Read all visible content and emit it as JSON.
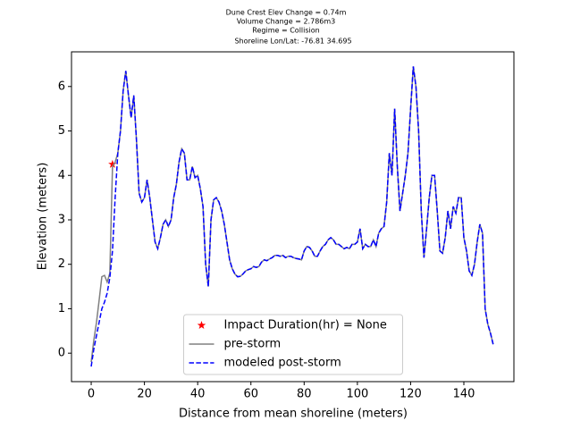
{
  "chart_data": {
    "type": "line",
    "title": [
      "Dune Crest Elev Change = 0.74m",
      "Volume Change = 2.786m3",
      "Regime = Collision",
      "Shoreline Lon/Lat: -76.81 34.695"
    ],
    "xlabel": "Distance from mean shoreline (meters)",
    "ylabel": "Elevation (meters)",
    "xlim": [
      -7.4,
      158.8
    ],
    "ylim": [
      -0.64,
      6.78
    ],
    "xticks": [
      0,
      20,
      40,
      60,
      80,
      100,
      120,
      140
    ],
    "yticks": [
      0,
      1,
      2,
      3,
      4,
      5,
      6
    ],
    "legend": "lower center",
    "x": [
      0,
      1,
      2,
      3,
      4,
      5,
      6,
      7,
      8,
      9,
      10,
      11,
      12,
      13,
      14,
      15,
      16,
      17,
      18,
      19,
      20,
      21,
      22,
      23,
      24,
      25,
      26,
      27,
      28,
      29,
      30,
      31,
      32,
      33,
      34,
      35,
      36,
      37,
      38,
      39,
      40,
      41,
      42,
      43,
      44,
      45,
      46,
      47,
      48,
      49,
      50,
      51,
      52,
      53,
      54,
      55,
      56,
      57,
      58,
      59,
      60,
      61,
      62,
      63,
      64,
      65,
      66,
      67,
      68,
      69,
      70,
      71,
      72,
      73,
      74,
      75,
      76,
      77,
      78,
      79,
      80,
      81,
      82,
      83,
      84,
      85,
      86,
      87,
      88,
      89,
      90,
      91,
      92,
      93,
      94,
      95,
      96,
      97,
      98,
      99,
      100,
      101,
      102,
      103,
      104,
      105,
      106,
      107,
      108,
      109,
      110,
      111,
      112,
      113,
      114,
      115,
      116,
      117,
      118,
      119,
      120,
      121,
      122,
      123,
      124,
      125,
      126,
      127,
      128,
      129,
      130,
      131,
      132,
      133,
      134,
      135,
      136,
      137,
      138,
      139,
      140,
      141,
      142,
      143,
      144,
      145,
      146,
      147,
      148,
      149,
      150,
      151
    ],
    "series": [
      {
        "name": "Impact Duration(hr) = None",
        "style": "star",
        "color": "#ff0000",
        "x": [
          8
        ],
        "values": [
          4.25
        ]
      },
      {
        "name": "pre-storm",
        "style": "solid",
        "color": "#808080",
        "values": [
          -0.2,
          0.3,
          0.7,
          1.2,
          1.72,
          1.75,
          1.6,
          1.8,
          4.2,
          4.3,
          4.5,
          5.0,
          5.9,
          6.35,
          5.8,
          5.3,
          5.8,
          4.8,
          3.6,
          3.4,
          3.5,
          3.9,
          3.5,
          3.0,
          2.5,
          2.35,
          2.6,
          2.9,
          3.0,
          2.85,
          3.0,
          3.5,
          3.8,
          4.3,
          4.6,
          4.5,
          3.9,
          3.9,
          4.2,
          3.95,
          4.0,
          3.7,
          3.3,
          2.0,
          1.5,
          3.0,
          3.45,
          3.5,
          3.4,
          3.2,
          2.9,
          2.5,
          2.1,
          1.9,
          1.78,
          1.72,
          1.73,
          1.78,
          1.85,
          1.88,
          1.9,
          1.95,
          1.93,
          1.95,
          2.05,
          2.1,
          2.08,
          2.12,
          2.15,
          2.2,
          2.2,
          2.18,
          2.2,
          2.15,
          2.18,
          2.18,
          2.15,
          2.13,
          2.12,
          2.1,
          2.3,
          2.4,
          2.38,
          2.3,
          2.18,
          2.18,
          2.3,
          2.4,
          2.45,
          2.55,
          2.6,
          2.55,
          2.45,
          2.45,
          2.4,
          2.35,
          2.38,
          2.35,
          2.45,
          2.45,
          2.5,
          2.8,
          2.35,
          2.45,
          2.4,
          2.4,
          2.55,
          2.4,
          2.7,
          2.8,
          2.85,
          3.4,
          4.5,
          4.0,
          5.5,
          4.2,
          3.2,
          3.6,
          4.0,
          4.5,
          5.5,
          6.45,
          6.0,
          5.0,
          3.2,
          2.15,
          2.8,
          3.5,
          4.0,
          4.0,
          3.2,
          2.3,
          2.25,
          2.6,
          3.2,
          2.8,
          3.3,
          3.15,
          3.5,
          3.5,
          2.6,
          2.3,
          1.85,
          1.75,
          2.0,
          2.5,
          2.9,
          2.7,
          1.0,
          0.65,
          0.45,
          0.2
        ]
      },
      {
        "name": "modeled post-storm",
        "style": "dashed",
        "color": "#0000ff",
        "values": [
          -0.3,
          0.1,
          0.4,
          0.7,
          1.0,
          1.15,
          1.35,
          1.7,
          2.3,
          3.5,
          4.5,
          5.0,
          5.9,
          6.35,
          5.8,
          5.3,
          5.8,
          4.8,
          3.6,
          3.4,
          3.5,
          3.9,
          3.5,
          3.0,
          2.5,
          2.35,
          2.6,
          2.9,
          3.0,
          2.85,
          3.0,
          3.5,
          3.8,
          4.3,
          4.6,
          4.5,
          3.9,
          3.9,
          4.2,
          3.95,
          4.0,
          3.7,
          3.3,
          2.0,
          1.5,
          3.0,
          3.45,
          3.5,
          3.4,
          3.2,
          2.9,
          2.5,
          2.1,
          1.9,
          1.78,
          1.72,
          1.73,
          1.78,
          1.85,
          1.88,
          1.9,
          1.95,
          1.93,
          1.95,
          2.05,
          2.1,
          2.08,
          2.12,
          2.15,
          2.2,
          2.2,
          2.18,
          2.2,
          2.15,
          2.18,
          2.18,
          2.15,
          2.13,
          2.12,
          2.1,
          2.3,
          2.4,
          2.38,
          2.3,
          2.18,
          2.18,
          2.3,
          2.4,
          2.45,
          2.55,
          2.6,
          2.55,
          2.45,
          2.45,
          2.4,
          2.35,
          2.38,
          2.35,
          2.45,
          2.45,
          2.5,
          2.8,
          2.35,
          2.45,
          2.4,
          2.4,
          2.55,
          2.4,
          2.7,
          2.8,
          2.85,
          3.4,
          4.5,
          4.0,
          5.5,
          4.2,
          3.2,
          3.6,
          4.0,
          4.5,
          5.5,
          6.45,
          6.0,
          5.0,
          3.2,
          2.15,
          2.8,
          3.5,
          4.0,
          4.0,
          3.2,
          2.3,
          2.25,
          2.6,
          3.2,
          2.8,
          3.3,
          3.15,
          3.5,
          3.5,
          2.6,
          2.3,
          1.85,
          1.75,
          2.0,
          2.5,
          2.9,
          2.7,
          1.0,
          0.65,
          0.45,
          0.2
        ]
      }
    ]
  }
}
